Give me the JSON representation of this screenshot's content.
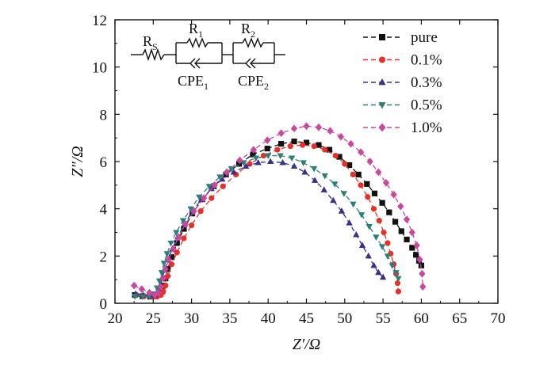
{
  "chart_data": {
    "type": "scatter",
    "title": "",
    "xlabel": "Z′/Ω",
    "ylabel": "Z″/Ω",
    "xlim": [
      20,
      70
    ],
    "ylim": [
      0,
      12
    ],
    "x_ticks": [
      20,
      25,
      30,
      35,
      40,
      45,
      50,
      55,
      60,
      65,
      70
    ],
    "y_ticks": [
      0,
      2,
      4,
      6,
      8,
      10,
      12
    ],
    "legend_position": "top-right",
    "series": [
      {
        "name": "pure",
        "color": "#111111",
        "marker": "square",
        "x": [
          22.6,
          23.6,
          24.6,
          25.3,
          25.8,
          26.2,
          26.4,
          26.6,
          26.9,
          27.4,
          28.1,
          29.0,
          30.1,
          31.4,
          32.9,
          34.5,
          36.2,
          38.0,
          39.9,
          41.7,
          43.4,
          45.0,
          46.6,
          48.0,
          49.3,
          50.6,
          51.8,
          52.9,
          53.9,
          54.9,
          55.8,
          56.6,
          57.4,
          58.1,
          58.8,
          59.3,
          59.7,
          60.0
        ],
        "y": [
          0.35,
          0.3,
          0.28,
          0.3,
          0.38,
          0.5,
          0.75,
          1.05,
          1.45,
          1.95,
          2.55,
          3.15,
          3.8,
          4.4,
          4.95,
          5.45,
          5.9,
          6.3,
          6.55,
          6.75,
          6.85,
          6.8,
          6.7,
          6.5,
          6.2,
          5.85,
          5.45,
          5.05,
          4.65,
          4.25,
          3.85,
          3.45,
          3.05,
          2.7,
          2.35,
          2.05,
          1.8,
          1.6
        ]
      },
      {
        "name": "0.1%",
        "color": "#e8302a",
        "marker": "circle",
        "x": [
          22.8,
          23.8,
          24.8,
          25.5,
          26.0,
          26.3,
          26.6,
          26.9,
          27.4,
          28.1,
          29.0,
          30.0,
          31.2,
          32.6,
          34.1,
          35.8,
          37.6,
          39.4,
          41.2,
          42.9,
          44.5,
          46.0,
          47.4,
          48.8,
          50.0,
          51.1,
          52.1,
          53.0,
          53.8,
          54.5,
          55.1,
          55.6,
          56.0,
          56.4,
          56.7,
          56.9,
          57.0
        ],
        "y": [
          0.35,
          0.3,
          0.28,
          0.28,
          0.35,
          0.5,
          0.75,
          1.15,
          1.65,
          2.15,
          2.75,
          3.3,
          3.9,
          4.45,
          4.95,
          5.45,
          5.9,
          6.25,
          6.5,
          6.65,
          6.7,
          6.65,
          6.5,
          6.25,
          5.9,
          5.45,
          5.0,
          4.5,
          4.0,
          3.5,
          3.0,
          2.55,
          2.1,
          1.65,
          1.25,
          0.85,
          0.5
        ]
      },
      {
        "name": "0.3%",
        "color": "#3a2f8c",
        "marker": "triangle-up",
        "x": [
          22.7,
          23.7,
          24.6,
          25.2,
          25.6,
          25.9,
          26.2,
          26.5,
          26.9,
          27.5,
          28.2,
          29.1,
          30.1,
          31.3,
          32.6,
          34.0,
          35.5,
          37.1,
          38.7,
          40.3,
          41.9,
          43.4,
          44.8,
          46.1,
          47.3,
          48.5,
          49.6,
          50.6,
          51.5,
          52.3,
          53.1,
          53.8,
          54.4,
          55.0
        ],
        "y": [
          0.4,
          0.35,
          0.32,
          0.35,
          0.5,
          0.75,
          1.1,
          1.45,
          1.85,
          2.3,
          2.8,
          3.35,
          3.9,
          4.4,
          4.85,
          5.25,
          5.55,
          5.8,
          5.95,
          6.0,
          5.95,
          5.8,
          5.55,
          5.2,
          4.8,
          4.35,
          3.9,
          3.4,
          2.9,
          2.45,
          2.0,
          1.6,
          1.3,
          1.1
        ]
      },
      {
        "name": "0.5%",
        "color": "#2a8078",
        "marker": "triangle-down",
        "x": [
          22.6,
          23.6,
          24.5,
          25.1,
          25.5,
          25.8,
          26.1,
          26.4,
          26.8,
          27.3,
          28.0,
          28.9,
          29.9,
          31.0,
          32.3,
          33.7,
          35.2,
          36.8,
          38.4,
          40.0,
          41.6,
          43.1,
          44.6,
          46.0,
          47.4,
          48.7,
          49.9,
          51.1,
          52.2,
          53.2,
          54.1,
          54.9,
          55.6,
          56.2,
          56.7,
          57.0
        ],
        "y": [
          0.3,
          0.28,
          0.3,
          0.4,
          0.65,
          0.95,
          1.3,
          1.7,
          2.1,
          2.55,
          3.0,
          3.5,
          4.0,
          4.5,
          4.95,
          5.35,
          5.7,
          5.95,
          6.15,
          6.25,
          6.25,
          6.15,
          5.95,
          5.7,
          5.4,
          5.05,
          4.65,
          4.2,
          3.75,
          3.25,
          2.8,
          2.4,
          2.0,
          1.6,
          1.3,
          1.05
        ]
      },
      {
        "name": "1.0%",
        "color": "#c9489e",
        "marker": "diamond",
        "x": [
          22.5,
          23.5,
          24.5,
          25.2,
          25.7,
          26.0,
          26.3,
          26.6,
          27.0,
          27.6,
          28.3,
          29.2,
          30.3,
          31.6,
          33.0,
          34.6,
          36.3,
          38.1,
          39.9,
          41.7,
          43.4,
          45.0,
          46.6,
          48.1,
          49.5,
          50.8,
          52.1,
          53.3,
          54.4,
          55.4,
          56.4,
          57.3,
          58.1,
          58.8,
          59.4,
          59.8,
          60.1,
          60.2
        ],
        "y": [
          0.75,
          0.6,
          0.45,
          0.35,
          0.45,
          0.7,
          1.05,
          1.45,
          1.85,
          2.3,
          2.8,
          3.35,
          3.9,
          4.45,
          5.0,
          5.55,
          6.05,
          6.5,
          6.9,
          7.2,
          7.4,
          7.5,
          7.45,
          7.3,
          7.05,
          6.75,
          6.4,
          6.0,
          5.55,
          5.1,
          4.6,
          4.1,
          3.55,
          3.0,
          2.45,
          1.85,
          1.25,
          0.7
        ]
      }
    ],
    "inset_circuit": {
      "labels": {
        "rs_main": "R",
        "rs_sub": "S",
        "r1_main": "R",
        "r1_sub": "1",
        "r2_main": "R",
        "r2_sub": "2",
        "cpe1_main": "CPE",
        "cpe1_sub": "1",
        "cpe2_main": "CPE",
        "cpe2_sub": "2"
      }
    }
  }
}
